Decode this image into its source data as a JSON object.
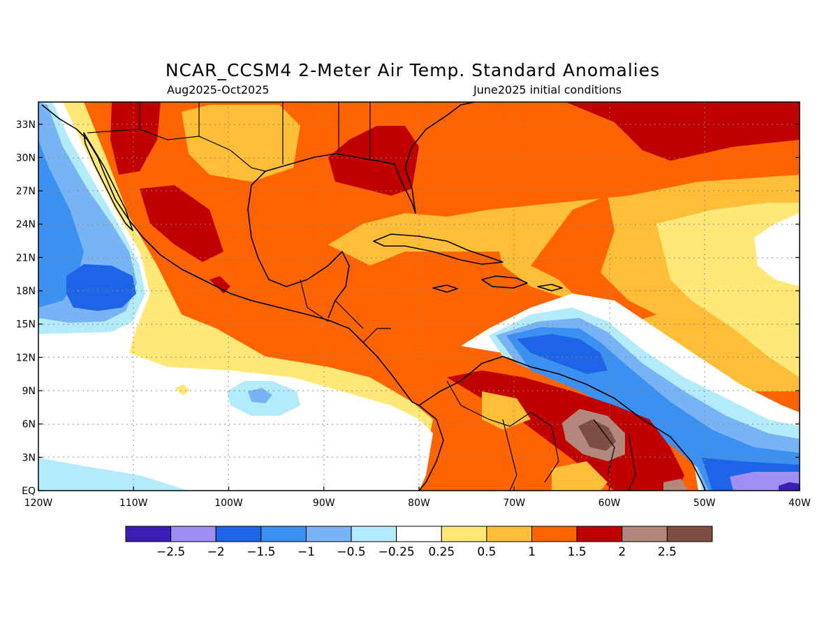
{
  "header": {
    "title": "NCAR_CCSM4 2-Meter Air Temp. Standard Anomalies",
    "period": "Aug2025-Oct2025",
    "init": "June2025 initial conditions"
  },
  "map": {
    "lon_range": [
      -120,
      -40
    ],
    "lat_range": [
      0,
      35
    ],
    "lon_labels": [
      "120W",
      "110W",
      "100W",
      "90W",
      "80W",
      "70W",
      "60W",
      "50W",
      "40W"
    ],
    "lat_labels": [
      "EQ",
      "3N",
      "6N",
      "9N",
      "12N",
      "15N",
      "18N",
      "21N",
      "24N",
      "27N",
      "30N",
      "33N"
    ]
  },
  "colorbar": {
    "colors": [
      "#3d1fb5",
      "#9f8ff2",
      "#1e64e6",
      "#3c91f0",
      "#78b4f5",
      "#b4ebfa",
      "#ffffff",
      "#ffe878",
      "#ffbe37",
      "#ff6400",
      "#c00000",
      "#b4877d",
      "#7d4f44"
    ],
    "labels": [
      "−2.5",
      "−2",
      "−1.5",
      "−1",
      "−0.5",
      "−0.25",
      "0.25",
      "0.5",
      "1",
      "1.5",
      "2",
      "2.5"
    ]
  }
}
